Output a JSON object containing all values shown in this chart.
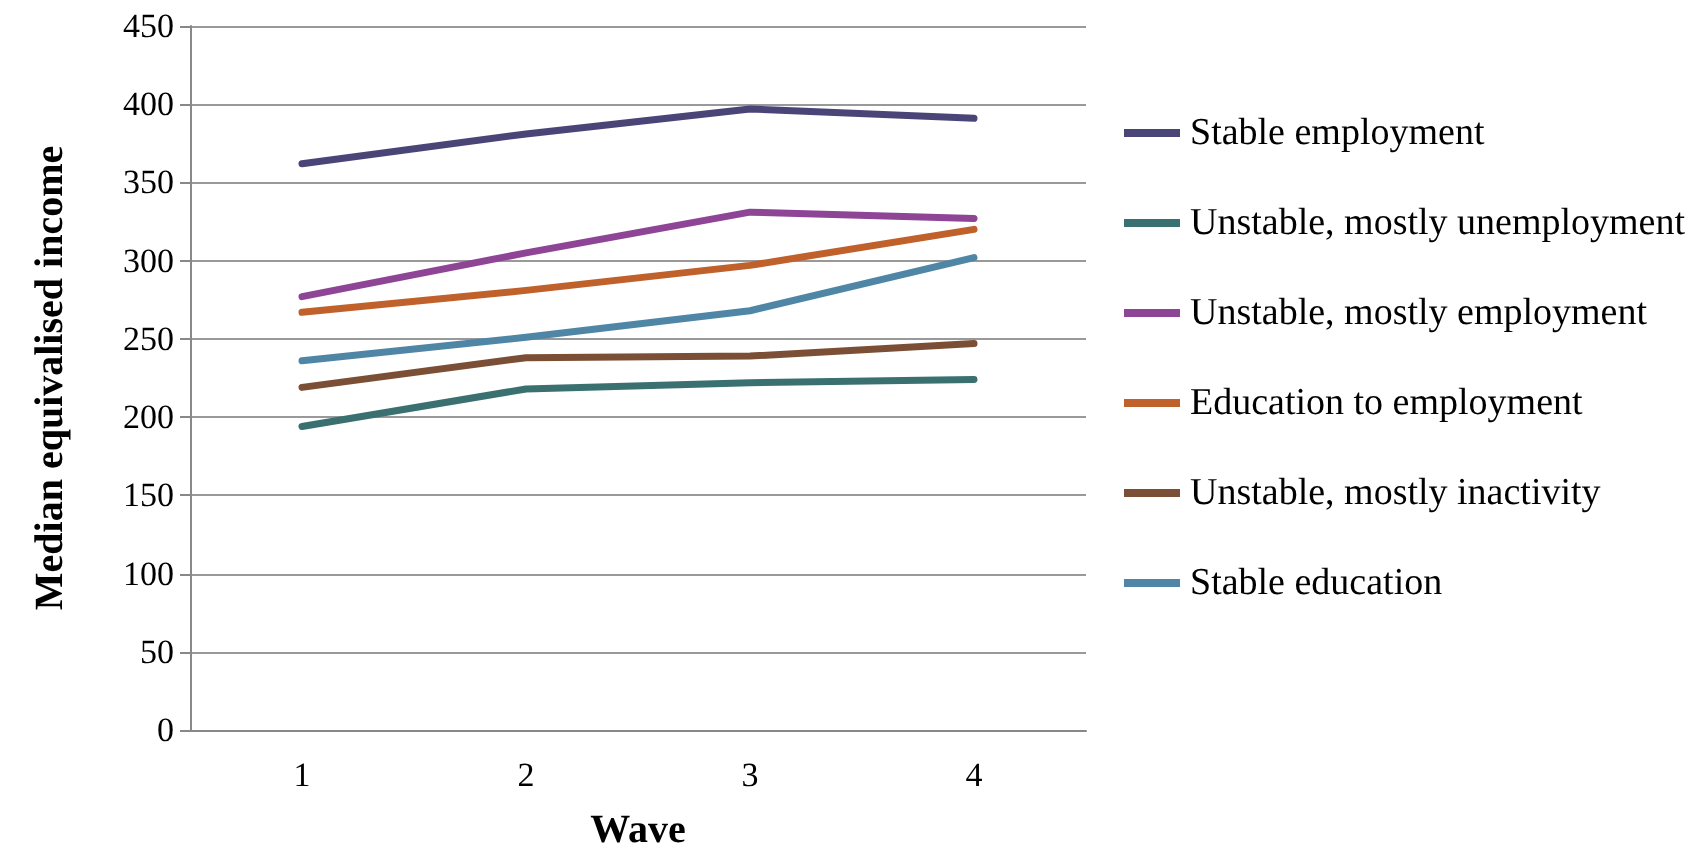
{
  "chart_data": {
    "type": "line",
    "xlabel": "Wave",
    "ylabel": "Median equivalised income",
    "categories": [
      "1",
      "2",
      "3",
      "4"
    ],
    "series": [
      {
        "name": "Stable employment",
        "color": "#4a4577",
        "values": [
          362,
          381,
          397,
          391
        ]
      },
      {
        "name": "Unstable, mostly unemployment",
        "color": "#3b7070",
        "values": [
          194,
          218,
          222,
          224
        ]
      },
      {
        "name": "Unstable, mostly employment",
        "color": "#8e4596",
        "values": [
          277,
          305,
          331,
          327
        ]
      },
      {
        "name": "Education to employment",
        "color": "#c0602a",
        "values": [
          267,
          281,
          297,
          320
        ]
      },
      {
        "name": "Unstable, mostly inactivity",
        "color": "#7b4f36",
        "values": [
          219,
          238,
          239,
          247
        ]
      },
      {
        "name": "Stable education",
        "color": "#4f86a6",
        "values": [
          236,
          251,
          268,
          302
        ]
      }
    ],
    "ylim": [
      0,
      450
    ],
    "yticks": [
      0,
      50,
      100,
      150,
      200,
      250,
      300,
      350,
      400,
      450
    ],
    "grid": "y",
    "legend": "right",
    "marker": "none",
    "line_style": "solid"
  }
}
